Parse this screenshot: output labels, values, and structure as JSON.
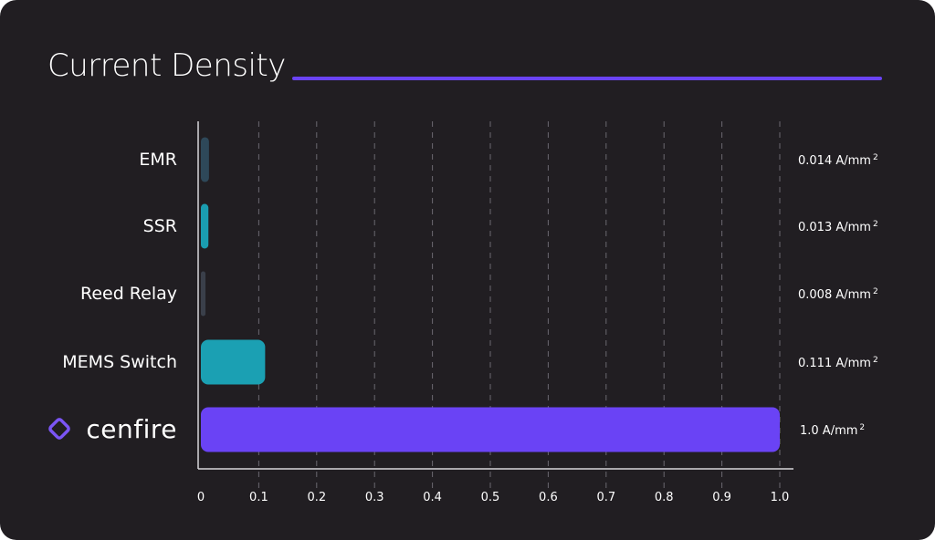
{
  "chart_data": {
    "type": "bar",
    "orientation": "horizontal",
    "title": "Current Density",
    "categories": [
      "EMR",
      "SSR",
      "Reed Relay",
      "MEMS Switch",
      "cenfire"
    ],
    "values": [
      0.014,
      0.013,
      0.008,
      0.111,
      1.0
    ],
    "value_labels": [
      "0.014 A/mm",
      "0.013 A/mm",
      "0.008 A/mm",
      "0.111 A/mm",
      "1.0 A/mm"
    ],
    "unit_superscript": "2",
    "bar_colors": [
      "#2e4859",
      "#1a9db0",
      "#3a3f4a",
      "#1ba0b3",
      "#6a43f5"
    ],
    "xlim": [
      0,
      1.0
    ],
    "xticks": [
      "0",
      "0.1",
      "0.2",
      "0.3",
      "0.4",
      "0.5",
      "0.6",
      "0.7",
      "0.8",
      "0.9",
      "1.0"
    ],
    "grid": true,
    "xlabel": "",
    "ylabel": ""
  },
  "colors": {
    "background": "#211e22",
    "accent": "#6a43f5"
  }
}
